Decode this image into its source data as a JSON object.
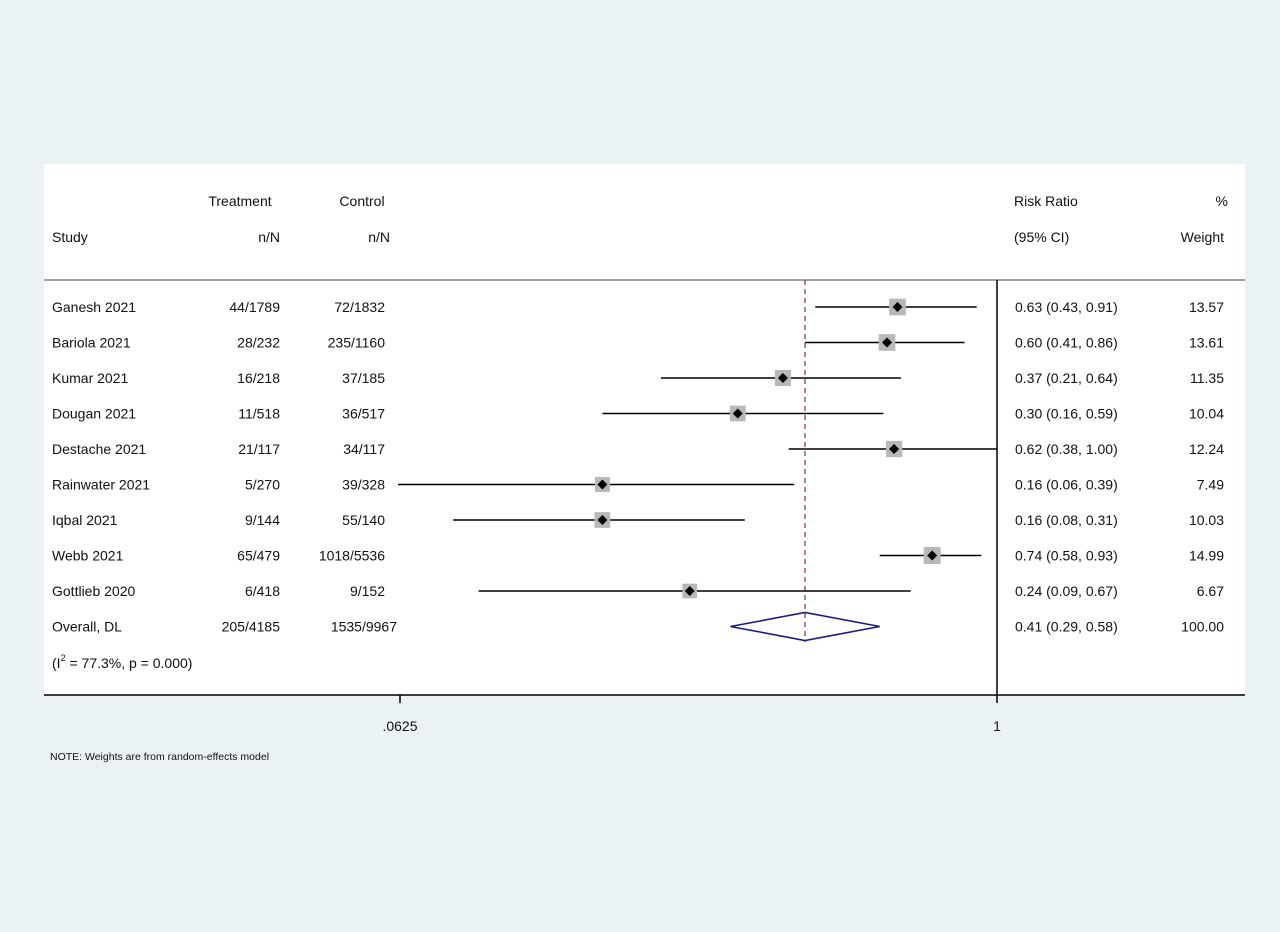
{
  "chart_data": {
    "type": "forest",
    "headers": {
      "study": "Study",
      "treatment_top": "Treatment",
      "treatment_bottom": "n/N",
      "control_top": "Control",
      "control_bottom": "n/N",
      "rr_top": "Risk Ratio",
      "rr_bottom": "(95% CI)",
      "weight_top": "%",
      "weight_bottom": "Weight"
    },
    "x_scale": "log",
    "xlim": [
      0.0625,
      1
    ],
    "x_ticks": [
      {
        "value": 0.0625,
        "label": ".0625"
      },
      {
        "value": 1,
        "label": "1"
      }
    ],
    "null_line": 1,
    "overall_line": 0.41,
    "studies": [
      {
        "name": "Ganesh 2021",
        "treatment": "44/1789",
        "control": "72/1832",
        "rr": 0.63,
        "lo": 0.43,
        "hi": 0.91,
        "ci_text": "0.63 (0.43, 0.91)",
        "weight": 13.57,
        "weight_text": "13.57"
      },
      {
        "name": "Bariola 2021",
        "treatment": "28/232",
        "control": "235/1160",
        "rr": 0.6,
        "lo": 0.41,
        "hi": 0.86,
        "ci_text": "0.60 (0.41, 0.86)",
        "weight": 13.61,
        "weight_text": "13.61"
      },
      {
        "name": "Kumar 2021",
        "treatment": "16/218",
        "control": "37/185",
        "rr": 0.37,
        "lo": 0.21,
        "hi": 0.64,
        "ci_text": "0.37 (0.21, 0.64)",
        "weight": 11.35,
        "weight_text": "11.35"
      },
      {
        "name": "Dougan 2021",
        "treatment": "11/518",
        "control": "36/517",
        "rr": 0.3,
        "lo": 0.16,
        "hi": 0.59,
        "ci_text": "0.30 (0.16, 0.59)",
        "weight": 10.04,
        "weight_text": "10.04"
      },
      {
        "name": "Destache 2021",
        "treatment": "21/117",
        "control": "34/117",
        "rr": 0.62,
        "lo": 0.38,
        "hi": 1.0,
        "ci_text": "0.62 (0.38, 1.00)",
        "weight": 12.24,
        "weight_text": "12.24"
      },
      {
        "name": "Rainwater 2021",
        "treatment": "5/270",
        "control": "39/328",
        "rr": 0.16,
        "lo": 0.06,
        "hi": 0.39,
        "ci_text": "0.16 (0.06, 0.39)",
        "weight": 7.49,
        "weight_text": "7.49"
      },
      {
        "name": "Iqbal 2021",
        "treatment": "9/144",
        "control": "55/140",
        "rr": 0.16,
        "lo": 0.08,
        "hi": 0.31,
        "ci_text": "0.16 (0.08, 0.31)",
        "weight": 10.03,
        "weight_text": "10.03"
      },
      {
        "name": "Webb 2021",
        "treatment": "65/479",
        "control": "1018/5536",
        "rr": 0.74,
        "lo": 0.58,
        "hi": 0.93,
        "ci_text": "0.74 (0.58, 0.93)",
        "weight": 14.99,
        "weight_text": "14.99"
      },
      {
        "name": "Gottlieb 2020",
        "treatment": "6/418",
        "control": "9/152",
        "rr": 0.24,
        "lo": 0.09,
        "hi": 0.67,
        "ci_text": "0.24 (0.09, 0.67)",
        "weight": 6.67,
        "weight_text": "6.67"
      }
    ],
    "overall": {
      "name": "Overall, DL",
      "treatment": "205/4185",
      "control": "1535/9967",
      "rr": 0.41,
      "lo": 0.29,
      "hi": 0.58,
      "ci_text": "0.41 (0.29, 0.58)",
      "weight": 100.0,
      "weight_text": "100.00"
    },
    "heterogeneity": {
      "prefix": "(I",
      "sup": "2",
      "rest": " = 77.3%, p = 0.000)"
    },
    "note": "NOTE: Weights are from random-effects model",
    "colors": {
      "page_background": "#eaf2f3",
      "panel_background": "#ffffff",
      "box": "#b8b8b8",
      "point": "#000000",
      "overall_line": "#a0344a",
      "diamond": "#1a1e82"
    }
  }
}
